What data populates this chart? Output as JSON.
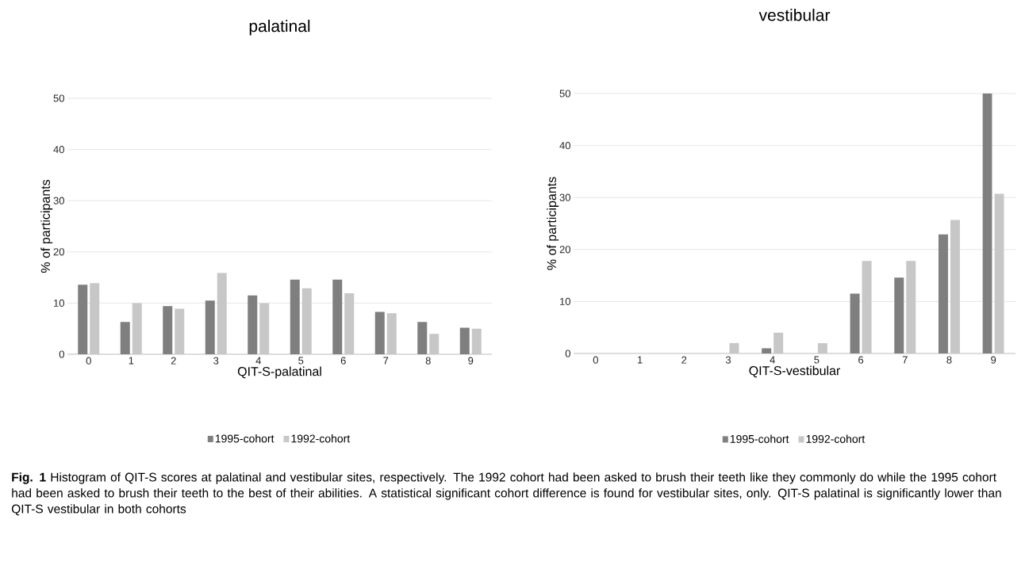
{
  "chart_data": [
    {
      "type": "bar",
      "title": "palatinal",
      "xlabel": "QIT-S-palatinal",
      "ylabel": "% of participants",
      "categories": [
        "0",
        "1",
        "2",
        "3",
        "4",
        "5",
        "6",
        "7",
        "8",
        "9"
      ],
      "series": [
        {
          "name": "1995-cohort",
          "color": "#7f7f7f",
          "values": [
            13.6,
            6.3,
            9.4,
            10.5,
            11.5,
            14.6,
            14.6,
            8.3,
            6.3,
            5.2
          ]
        },
        {
          "name": "1992-cohort",
          "color": "#c6c7c6",
          "values": [
            13.9,
            10.0,
            8.9,
            15.9,
            10.0,
            12.9,
            11.9,
            8.0,
            4.0,
            5.0
          ]
        }
      ],
      "ylim": [
        0,
        50
      ],
      "yticks": [
        0,
        10,
        20,
        30,
        40,
        50
      ],
      "grid": "y",
      "legend": "bottom",
      "annotations": [
        "**Fig. 1** Histogram of QIT-S scores at palatinal and vestibular sites, respectively. The 1992 cohort had been asked to brush their teeth like they commonly do while the 1995 cohort had been asked to brush their teeth to the best of their abilities. A statistical significant cohort difference is found for vestibular sites, only. QIT-S palatinal is significantly lower than QIT-S vestibular in both cohorts"
      ]
    },
    {
      "type": "bar",
      "title": "vestibular",
      "xlabel": "QIT-S-vestibular",
      "ylabel": "% of participants",
      "categories": [
        "0",
        "1",
        "2",
        "3",
        "4",
        "5",
        "6",
        "7",
        "8",
        "9"
      ],
      "series": [
        {
          "name": "1995-cohort",
          "color": "#7f7f7f",
          "values": [
            0,
            0,
            0,
            0,
            1.0,
            0,
            11.5,
            14.6,
            22.9,
            50.0
          ]
        },
        {
          "name": "1992-cohort",
          "color": "#c6c7c6",
          "values": [
            0,
            0,
            0,
            2.0,
            4.0,
            2.0,
            17.8,
            17.8,
            25.7,
            30.7
          ]
        }
      ],
      "ylim": [
        0,
        50
      ],
      "yticks": [
        0,
        10,
        20,
        30,
        40,
        50
      ],
      "grid": "y",
      "legend": "bottom"
    }
  ]
}
